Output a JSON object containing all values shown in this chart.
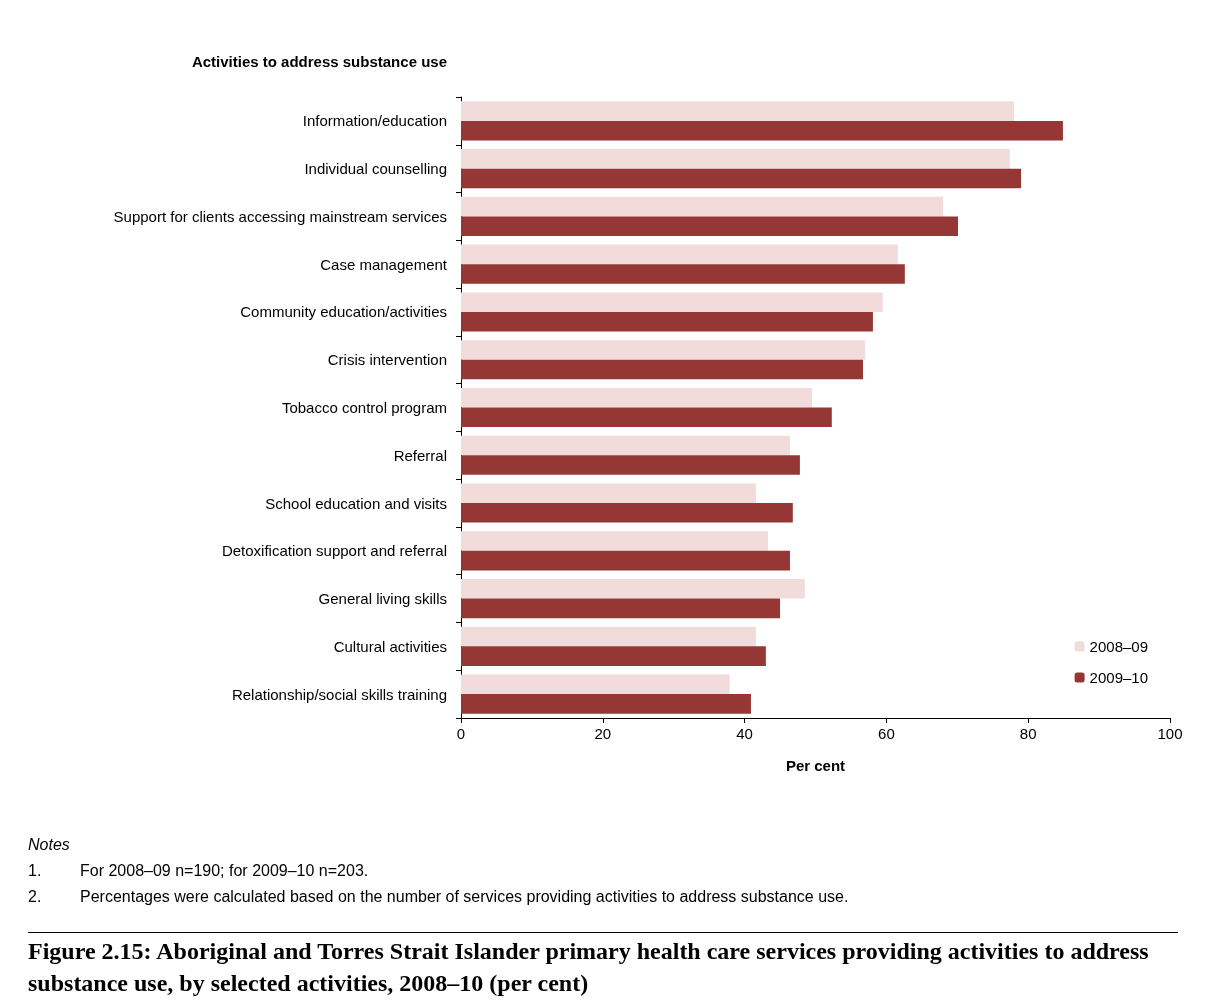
{
  "chart_data": {
    "type": "bar",
    "orientation": "horizontal",
    "title": "Figure 2.15: Aboriginal and Torres Strait Islander primary health care services providing activities to address substance use, by selected activities, 2008–10 (per cent)",
    "ylabel": "Activities to address substance use",
    "xlabel": "Per cent",
    "categories": [
      "Information/education",
      "Individual counselling",
      "Support for clients accessing mainstream services",
      "Case management",
      "Community education/activities",
      "Crisis intervention",
      "Tobacco control program",
      "Referral",
      "School education and visits",
      "Detoxification support and referral",
      "General living skills",
      "Cultural activities",
      "Relationship/social skills training"
    ],
    "series": [
      {
        "name": "2008–09",
        "color": "#f2dcdb",
        "values": [
          78,
          77.4,
          68,
          61.6,
          59.5,
          57,
          49.5,
          46.4,
          41.6,
          43.3,
          48.5,
          41.6,
          37.9
        ]
      },
      {
        "name": "2009–10",
        "color": "#953735",
        "values": [
          84.9,
          79,
          70.1,
          62.6,
          58.1,
          56.7,
          52.3,
          47.8,
          46.8,
          46.4,
          45,
          43,
          40.9
        ]
      }
    ],
    "xlim": [
      0,
      100
    ],
    "xticks": [
      0,
      20,
      40,
      60,
      80,
      100
    ],
    "grid": false,
    "legend": "bottom right",
    "annotations": [
      "Notes",
      "1.\tFor 2008–09 n=190; for 2009–10 n=203.",
      "2.\tPercentages were calculated based on the number of services providing activities to address substance use."
    ]
  }
}
